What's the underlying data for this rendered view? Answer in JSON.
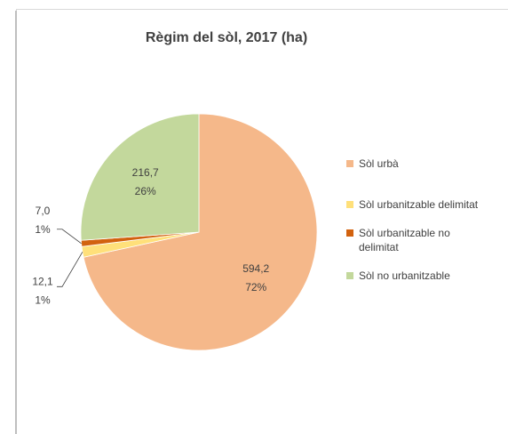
{
  "chart_data": {
    "type": "pie",
    "title": "Règim del sòl, 2017 (ha)",
    "categories": [
      "Sòl urbà",
      "Sòl urbanitzable delimitat",
      "Sòl urbanitzable no delimitat",
      "Sòl no urbanitzable"
    ],
    "values": [
      594.2,
      12.1,
      7.0,
      216.7
    ],
    "value_labels": [
      "594,2",
      "12,1",
      "7,0",
      "216,7"
    ],
    "percentages": [
      72,
      1,
      1,
      26
    ],
    "percentage_labels": [
      "72%",
      "1%",
      "1%",
      "26%"
    ],
    "colors": [
      "#f5b88a",
      "#ffe07a",
      "#d2620f",
      "#c3d89c"
    ],
    "legend": "right"
  }
}
